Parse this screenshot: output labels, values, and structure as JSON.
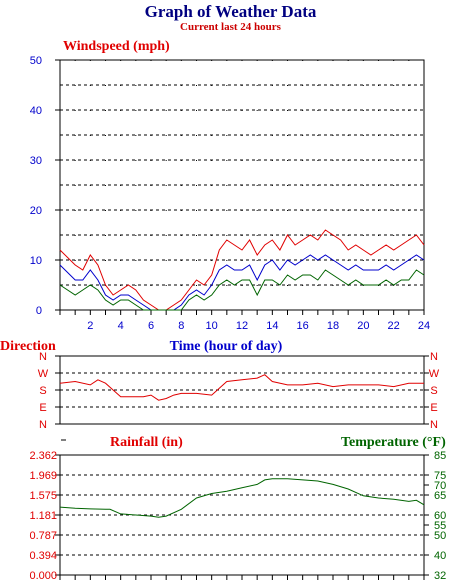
{
  "header": {
    "title": "Graph of Weather Data",
    "subtitle": "Current last 24 hours"
  },
  "colors": {
    "red": "#e00000",
    "blue": "#0000cc",
    "green": "#006400",
    "navy": "#000080"
  },
  "chart_data": [
    {
      "type": "line",
      "title": "Windspeed (mph)",
      "xlabel": "Time (hour of day)",
      "xlim": [
        0,
        24
      ],
      "ylim": [
        0,
        50
      ],
      "yticks": [
        "0",
        "10",
        "20",
        "30",
        "40",
        "50"
      ],
      "xticks": [
        "2",
        "4",
        "6",
        "8",
        "10",
        "12",
        "14",
        "16",
        "18",
        "20",
        "22",
        "24"
      ],
      "grid": true,
      "series": [
        {
          "color": "#e00000",
          "x": [
            0,
            1,
            1.5,
            2,
            2.5,
            3,
            3.5,
            4,
            4.5,
            5,
            5.5,
            6,
            6.5,
            7,
            7.5,
            8,
            8.5,
            9,
            9.5,
            10,
            10.5,
            11,
            11.5,
            12,
            12.5,
            13,
            13.5,
            14,
            14.5,
            15,
            15.5,
            16,
            16.5,
            17,
            17.5,
            18,
            18.5,
            19,
            19.5,
            20,
            20.5,
            21,
            21.5,
            22,
            22.5,
            23,
            23.5,
            24
          ],
          "y": [
            12,
            9,
            8,
            11,
            9,
            5,
            3,
            4,
            5,
            4,
            2,
            1,
            0,
            0,
            1,
            2,
            4,
            6,
            5,
            7,
            12,
            14,
            13,
            12,
            14,
            11,
            13,
            14,
            12,
            15,
            13,
            14,
            15,
            14,
            16,
            15,
            14,
            12,
            13,
            12,
            11,
            12,
            13,
            12,
            13,
            14,
            15,
            13
          ]
        },
        {
          "color": "#0000cc",
          "x": [
            0,
            1,
            1.5,
            2,
            2.5,
            3,
            3.5,
            4,
            4.5,
            5,
            5.5,
            6,
            6.5,
            7,
            7.5,
            8,
            8.5,
            9,
            9.5,
            10,
            10.5,
            11,
            11.5,
            12,
            12.5,
            13,
            13.5,
            14,
            14.5,
            15,
            15.5,
            16,
            16.5,
            17,
            17.5,
            18,
            18.5,
            19,
            19.5,
            20,
            20.5,
            21,
            21.5,
            22,
            22.5,
            23,
            23.5,
            24
          ],
          "y": [
            9,
            6,
            6,
            8,
            6,
            3,
            2,
            3,
            3,
            2,
            1,
            0,
            0,
            0,
            0,
            1,
            3,
            4,
            3,
            5,
            8,
            9,
            8,
            8,
            9,
            6,
            9,
            10,
            8,
            10,
            9,
            10,
            11,
            10,
            11,
            10,
            9,
            8,
            9,
            8,
            8,
            8,
            9,
            8,
            9,
            10,
            11,
            10
          ]
        },
        {
          "color": "#006400",
          "x": [
            0,
            1,
            1.5,
            2,
            2.5,
            3,
            3.5,
            4,
            4.5,
            5,
            5.5,
            6,
            6.5,
            7,
            7.5,
            8,
            8.5,
            9,
            9.5,
            10,
            10.5,
            11,
            11.5,
            12,
            12.5,
            13,
            13.5,
            14,
            14.5,
            15,
            15.5,
            16,
            16.5,
            17,
            17.5,
            18,
            18.5,
            19,
            19.5,
            20,
            20.5,
            21,
            21.5,
            22,
            22.5,
            23,
            23.5,
            24
          ],
          "y": [
            5,
            3,
            4,
            5,
            4,
            2,
            1,
            2,
            2,
            1,
            0,
            0,
            0,
            0,
            0,
            0,
            2,
            3,
            2,
            3,
            5,
            6,
            5,
            6,
            6,
            3,
            6,
            6,
            5,
            7,
            6,
            7,
            7,
            6,
            8,
            7,
            6,
            5,
            6,
            5,
            5,
            5,
            6,
            5,
            6,
            6,
            8,
            7
          ]
        }
      ]
    },
    {
      "type": "line",
      "title": "Direction",
      "yticks": [
        "N",
        "W",
        "S",
        "E",
        "N"
      ],
      "series": [
        {
          "color": "#e00000",
          "x": [
            0,
            1,
            2,
            2.5,
            3,
            3.5,
            4,
            5,
            5.5,
            6,
            6.5,
            7,
            7.5,
            8,
            9,
            10,
            10.5,
            11,
            12,
            13,
            13.5,
            14,
            15,
            16,
            17,
            18,
            19,
            20,
            21,
            22,
            23,
            24
          ],
          "y": [
            2.4,
            2.5,
            2.3,
            2.6,
            2.4,
            2.0,
            1.6,
            1.6,
            1.6,
            1.7,
            1.4,
            1.5,
            1.7,
            1.8,
            1.8,
            1.7,
            2.1,
            2.5,
            2.6,
            2.7,
            2.9,
            2.5,
            2.3,
            2.3,
            2.4,
            2.2,
            2.3,
            2.3,
            2.3,
            2.2,
            2.4,
            2.4
          ]
        }
      ]
    },
    {
      "type": "line",
      "title": "Rainfall (in)",
      "y2label": "Temperature (°F)",
      "yticks": [
        "0.000",
        "0.394",
        "0.787",
        "1.181",
        "1.575",
        "1.969",
        "2.362"
      ],
      "y2ticks": [
        "32",
        "40",
        "50",
        "55",
        "60",
        "65",
        "70",
        "75",
        "85"
      ],
      "y2lim": [
        32,
        85
      ],
      "series": [
        {
          "name": "Temperature (°F)",
          "color": "#006400",
          "x": [
            0,
            1,
            2,
            3,
            3.3,
            4,
            5,
            6,
            6.5,
            7,
            8,
            9,
            10,
            11,
            12,
            13,
            13.5,
            14,
            15,
            16,
            17,
            18,
            19,
            20,
            21,
            22,
            23,
            23.5,
            24
          ],
          "y": [
            62,
            61.5,
            61.2,
            61,
            61,
            59,
            58.5,
            58,
            57.5,
            58,
            61,
            66,
            68,
            69,
            70.5,
            72,
            74,
            74.5,
            74.5,
            74,
            73.5,
            72,
            70,
            67,
            66,
            65.5,
            64.5,
            65,
            63
          ]
        }
      ]
    }
  ]
}
